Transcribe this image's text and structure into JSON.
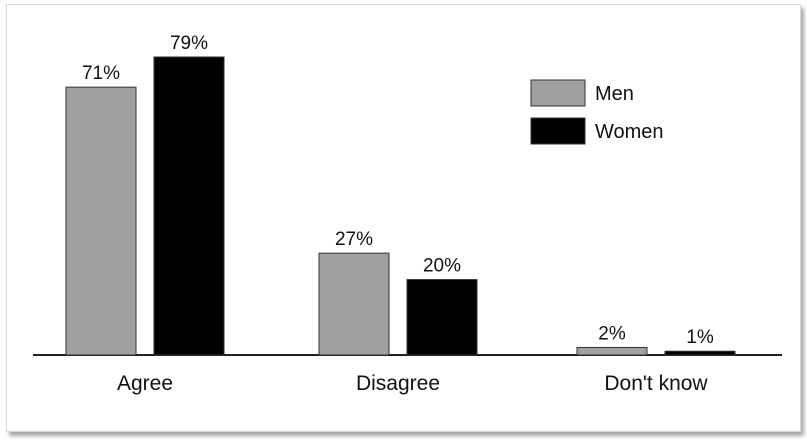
{
  "chart_data": {
    "type": "bar",
    "categories": [
      "Agree",
      "Disagree",
      "Don't know"
    ],
    "series": [
      {
        "name": "Men",
        "values": [
          71,
          27,
          2
        ],
        "labels": [
          "71%",
          "27%",
          "2%"
        ],
        "color": "#a0a0a0"
      },
      {
        "name": "Women",
        "values": [
          79,
          20,
          1
        ],
        "labels": [
          "79%",
          "20%",
          "1%"
        ],
        "color": "#000000"
      }
    ],
    "title": "",
    "xlabel": "",
    "ylabel": "",
    "ylim": [
      0,
      79
    ],
    "grid": false,
    "legend_position": "top-right"
  }
}
